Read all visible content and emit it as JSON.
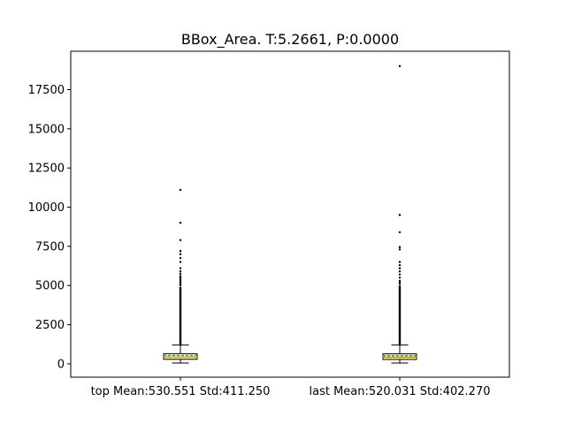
{
  "chart_data": {
    "type": "box",
    "title": "BBox_Area. T:5.2661, P:0.0000",
    "xlabel": "",
    "ylabel": "",
    "ylim": [
      -850,
      19950
    ],
    "yticks": [
      0,
      2500,
      5000,
      7500,
      10000,
      12500,
      15000,
      17500
    ],
    "grid": false,
    "categories": [
      "top Mean:530.551 Std:411.250",
      "last Mean:520.031 Std:402.270"
    ],
    "boxes": [
      {
        "category": "top Mean:530.551 Std:411.250",
        "whisker_low": 50,
        "q1": 290,
        "median": 440,
        "mean": 531,
        "q3": 650,
        "whisker_high": 1200,
        "outlier_dense_range": [
          1200,
          4900
        ],
        "outliers": [
          5000,
          5100,
          5200,
          5300,
          5400,
          5500,
          5600,
          5750,
          5900,
          6100,
          6500,
          6750,
          7000,
          7200,
          7900,
          9000,
          11100
        ]
      },
      {
        "category": "last Mean:520.031 Std:402.270",
        "whisker_low": 50,
        "q1": 280,
        "median": 430,
        "mean": 520,
        "q3": 640,
        "whisker_high": 1200,
        "outlier_dense_range": [
          1200,
          5000
        ],
        "outliers": [
          5100,
          5200,
          5300,
          5500,
          5700,
          5900,
          6100,
          6300,
          6500,
          7300,
          7450,
          8400,
          9500,
          19000
        ]
      }
    ],
    "colors": {
      "box_fill": "#fdf3d0",
      "box_edge": "#000000",
      "median": "#ff7f0e",
      "mean": "#2ca02c",
      "outlier": "#000000"
    }
  }
}
